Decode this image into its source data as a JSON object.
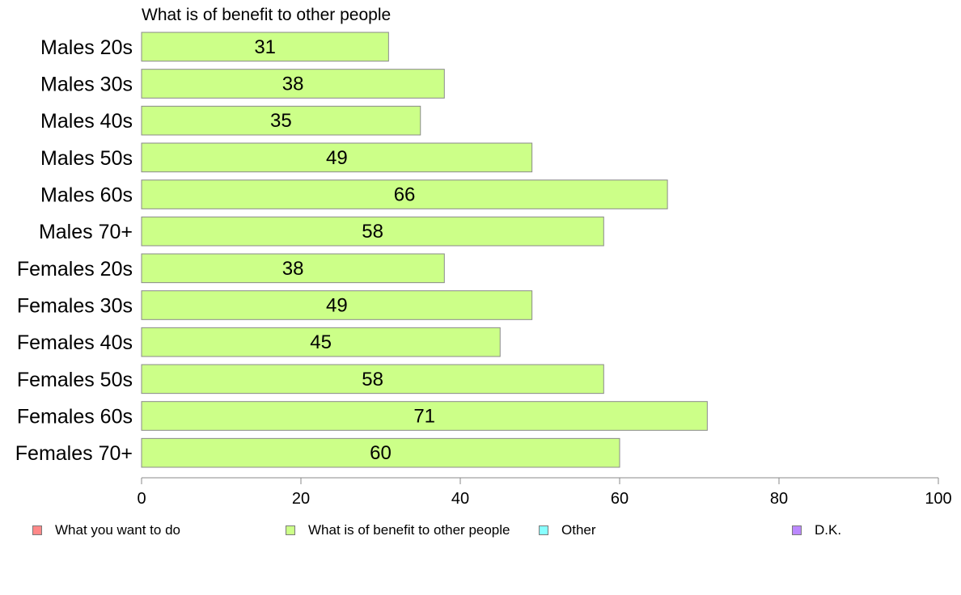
{
  "chart_data": {
    "type": "bar",
    "orientation": "horizontal",
    "title": "What is of benefit to other people",
    "categories": [
      "Males 20s",
      "Males 30s",
      "Males 40s",
      "Males 50s",
      "Males 60s",
      "Males 70+",
      "Females 20s",
      "Females 30s",
      "Females 40s",
      "Females 50s",
      "Females 60s",
      "Females 70+"
    ],
    "series": [
      {
        "name": "What is of benefit to other people",
        "color": "#ccff88",
        "values": [
          31,
          38,
          35,
          49,
          66,
          58,
          38,
          49,
          45,
          58,
          71,
          60
        ]
      }
    ],
    "xlim": [
      0,
      100
    ],
    "xticks": [
      "0",
      "20",
      "40",
      "60",
      "80",
      "100"
    ],
    "grid": false,
    "legend_position": "bottom",
    "legend": [
      {
        "label": "What you want to do",
        "color": "#ff8888"
      },
      {
        "label": "What is of benefit to other people",
        "color": "#ccff88"
      },
      {
        "label": "Other",
        "color": "#88ffff"
      },
      {
        "label": "D.K.",
        "color": "#bb88ff"
      }
    ]
  }
}
